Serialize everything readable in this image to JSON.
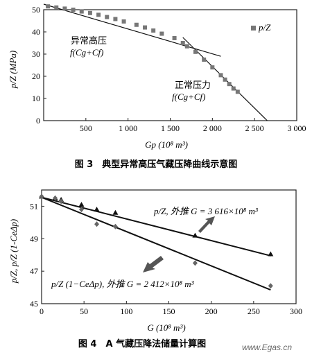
{
  "figure3": {
    "caption": "图 3　典型异常高压气藏压降曲线示意图",
    "legend": "p/Z",
    "ylabel": "p/Z (MPa)",
    "xlabel": "Gp (10⁸ m³)",
    "annotation_abnormal_1": "异常高压",
    "annotation_abnormal_2": "f(Cg+Cf)",
    "annotation_normal_1": "正常压力",
    "annotation_normal_2": "f(Cg+Cf)"
  },
  "figure4": {
    "caption": "图 4　A 气藏压降法储量计算图",
    "ylabel": "p/Z, p/Z (1-CeΔp)",
    "xlabel": "G (10⁸ m³)",
    "annotation_upper": "p/Z, 外推 G = 3 616×10⁸ m³",
    "annotation_lower": "p/Z (1−CeΔp), 外推 G = 2 412×10⁸ m³"
  },
  "watermark": "www.Egas.cn",
  "chart_data": [
    {
      "type": "scatter",
      "title": "图 3　典型异常高压气藏压降曲线示意图",
      "xlabel": "Gp (10⁸ m³)",
      "ylabel": "p/Z (MPa)",
      "xlim": [
        0,
        3000
      ],
      "ylim": [
        0,
        50
      ],
      "xticks": [
        500,
        1000,
        1500,
        2000,
        2500,
        3000
      ],
      "xtick_labels": [
        "500",
        "1 000",
        "1 500",
        "2 000",
        "2 500",
        "3 000"
      ],
      "yticks": [
        0,
        10,
        20,
        30,
        40,
        50
      ],
      "legend_position": "top-right",
      "grid": false,
      "series": [
        {
          "name": "p/Z",
          "marker": "square",
          "points": [
            [
              50,
              51.5
            ],
            [
              150,
              51
            ],
            [
              250,
              50.5
            ],
            [
              350,
              50
            ],
            [
              450,
              49.2
            ],
            [
              550,
              48.5
            ],
            [
              650,
              47.7
            ],
            [
              750,
              46.7
            ],
            [
              850,
              45.8
            ],
            [
              950,
              44.7
            ],
            [
              1100,
              43.2
            ],
            [
              1200,
              42
            ],
            [
              1300,
              40.6
            ],
            [
              1400,
              39.2
            ],
            [
              1550,
              37.2
            ],
            [
              1650,
              35
            ],
            [
              1700,
              33.5
            ],
            [
              1800,
              31
            ],
            [
              1900,
              27.5
            ],
            [
              2000,
              24
            ],
            [
              2100,
              20.5
            ],
            [
              2150,
              18.5
            ],
            [
              2200,
              16.5
            ],
            [
              2250,
              14.5
            ],
            [
              2300,
              13
            ]
          ]
        }
      ],
      "trend_lines": [
        {
          "label": "异常高压 f(Cg+Cf)",
          "from": [
            0,
            52.5
          ],
          "to": [
            2100,
            29
          ]
        },
        {
          "label": "正常压力 f(Cg+Cf)",
          "from": [
            1650,
            37.5
          ],
          "to": [
            2650,
            0
          ]
        }
      ]
    },
    {
      "type": "scatter",
      "title": "图 4　A 气藏压降法储量计算图",
      "xlabel": "G (10⁸ m³)",
      "ylabel": "p/Z, p/Z (1-CeΔp)",
      "xlim": [
        0,
        300
      ],
      "ylim": [
        45,
        52
      ],
      "xticks": [
        0,
        50,
        100,
        150,
        200,
        250,
        300
      ],
      "yticks": [
        45,
        47,
        49,
        51
      ],
      "grid": false,
      "series": [
        {
          "name": "p/Z",
          "marker": "triangle",
          "points": [
            [
              0,
              51.6
            ],
            [
              16,
              51.5
            ],
            [
              23,
              51.4
            ],
            [
              47,
              51.1
            ],
            [
              65,
              50.8
            ],
            [
              87,
              50.6
            ],
            [
              181,
              49.2
            ],
            [
              270,
              48.05
            ]
          ]
        },
        {
          "name": "p/Z (1-CeΔp)",
          "marker": "diamond",
          "points": [
            [
              0,
              51.6
            ],
            [
              16,
              51.5
            ],
            [
              23,
              51.3
            ],
            [
              47,
              50.8
            ],
            [
              65,
              49.9
            ],
            [
              87,
              49.75
            ],
            [
              181,
              47.5
            ],
            [
              270,
              46.1
            ]
          ]
        }
      ],
      "trend_lines": [
        {
          "label": "p/Z, 外推 G = 3 616×10⁸ m³",
          "from": [
            0,
            51.55
          ],
          "to": [
            270,
            47.95
          ]
        },
        {
          "label": "p/Z (1-CeΔp), 外推 G = 2 412×10⁸ m³",
          "from": [
            0,
            51.55
          ],
          "to": [
            270,
            45.85
          ]
        }
      ]
    }
  ]
}
